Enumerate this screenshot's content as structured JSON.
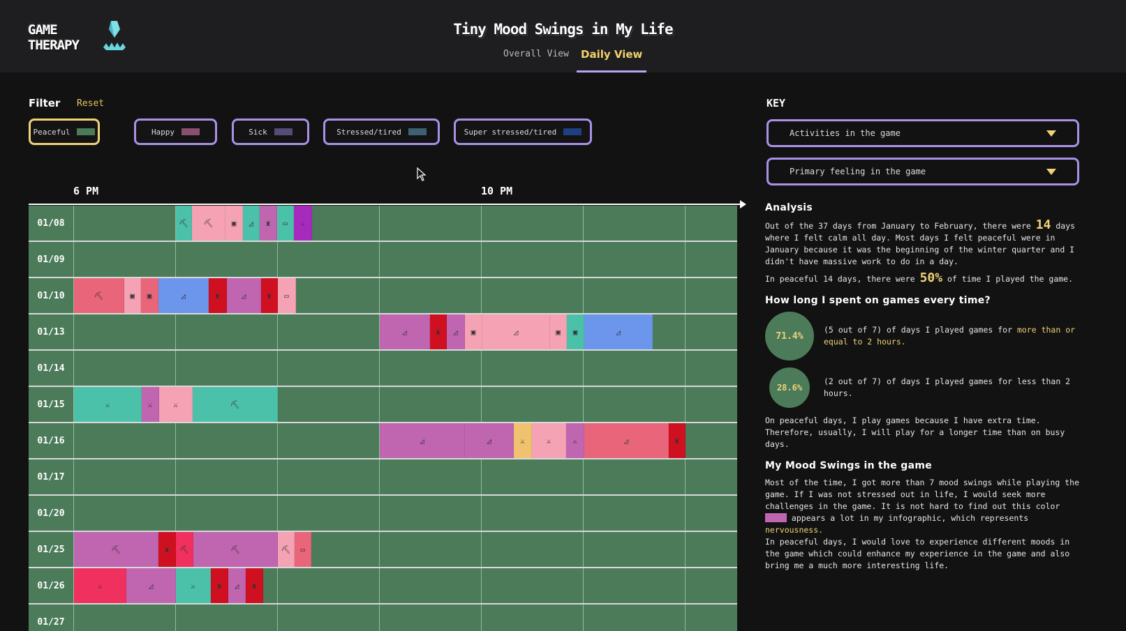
{
  "header": {
    "logo_line1": "GAME",
    "logo_line2": "THERAPY",
    "title": "Tiny Mood Swings in My Life",
    "tabs": [
      {
        "label": "Overall View",
        "active": false
      },
      {
        "label": "Daily View",
        "active": true
      }
    ]
  },
  "filter": {
    "label": "Filter",
    "reset": "Reset",
    "chips": [
      {
        "label": "Peaceful",
        "color": "#4c7b5a",
        "selected": true
      },
      {
        "label": "Happy",
        "color": "#8a4f6d",
        "selected": false
      },
      {
        "label": "Sick",
        "color": "#574b78",
        "selected": false
      },
      {
        "label": "Stressed/tired",
        "color": "#3d6173",
        "selected": false
      },
      {
        "label": "Super stressed/tired",
        "color": "#1f3f82",
        "selected": false
      }
    ]
  },
  "key": {
    "title": "KEY",
    "dropdown1": "Activities in the game",
    "dropdown2": "Primary feeling in the game"
  },
  "timeline": {
    "time_labels": [
      "6 PM",
      "10 PM"
    ],
    "rows": [
      {
        "date": "01/08"
      },
      {
        "date": "01/09"
      },
      {
        "date": "01/10"
      },
      {
        "date": "01/13"
      },
      {
        "date": "01/14"
      },
      {
        "date": "01/15"
      },
      {
        "date": "01/16"
      },
      {
        "date": "01/17"
      },
      {
        "date": "01/20"
      },
      {
        "date": "01/25"
      },
      {
        "date": "01/26"
      },
      {
        "date": "01/27"
      }
    ]
  },
  "analysis": {
    "title": "Analysis",
    "p1_a": "Out of the 37 days from January to February, there were ",
    "p1_num": "14",
    "p1_b": " days where I felt calm all day. Most days I felt peaceful were in January because it was the beginning of the winter quarter and I didn't have massive work to do in a day.",
    "p2_a": "In peaceful 14 days, there were ",
    "p2_num": "50%",
    "p2_b": " of time I played the game."
  },
  "duration": {
    "title": "How long I spent on games every time?",
    "stat1_pct": "71.4%",
    "stat1_text_a": "(5 out of 7) of days I played games for ",
    "stat1_text_hl": "more than or equal to 2 hours.",
    "stat2_pct": "28.6%",
    "stat2_text": "(2 out of 7) of days I played games for less than 2 hours.",
    "note": "On peaceful days, I play games because I have extra time. Therefore, usually, I will play for a longer time than on busy days."
  },
  "mood": {
    "title": "My Mood Swings in the game",
    "p_a": "Most of the time, I got more than 7 mood swings while playing the game. If I was not stressed out in life, I would seek more challenges in the game. It is not hard to find out this color ",
    "swatch_color": "#c065b0",
    "p_b": " appears a lot in my infographic, which represents ",
    "p_hl": "nervousness.",
    "p2": "In peaceful days, I would love to experience different moods in the game which could enhance my experience in the game and also bring me a much more interesting life."
  }
}
